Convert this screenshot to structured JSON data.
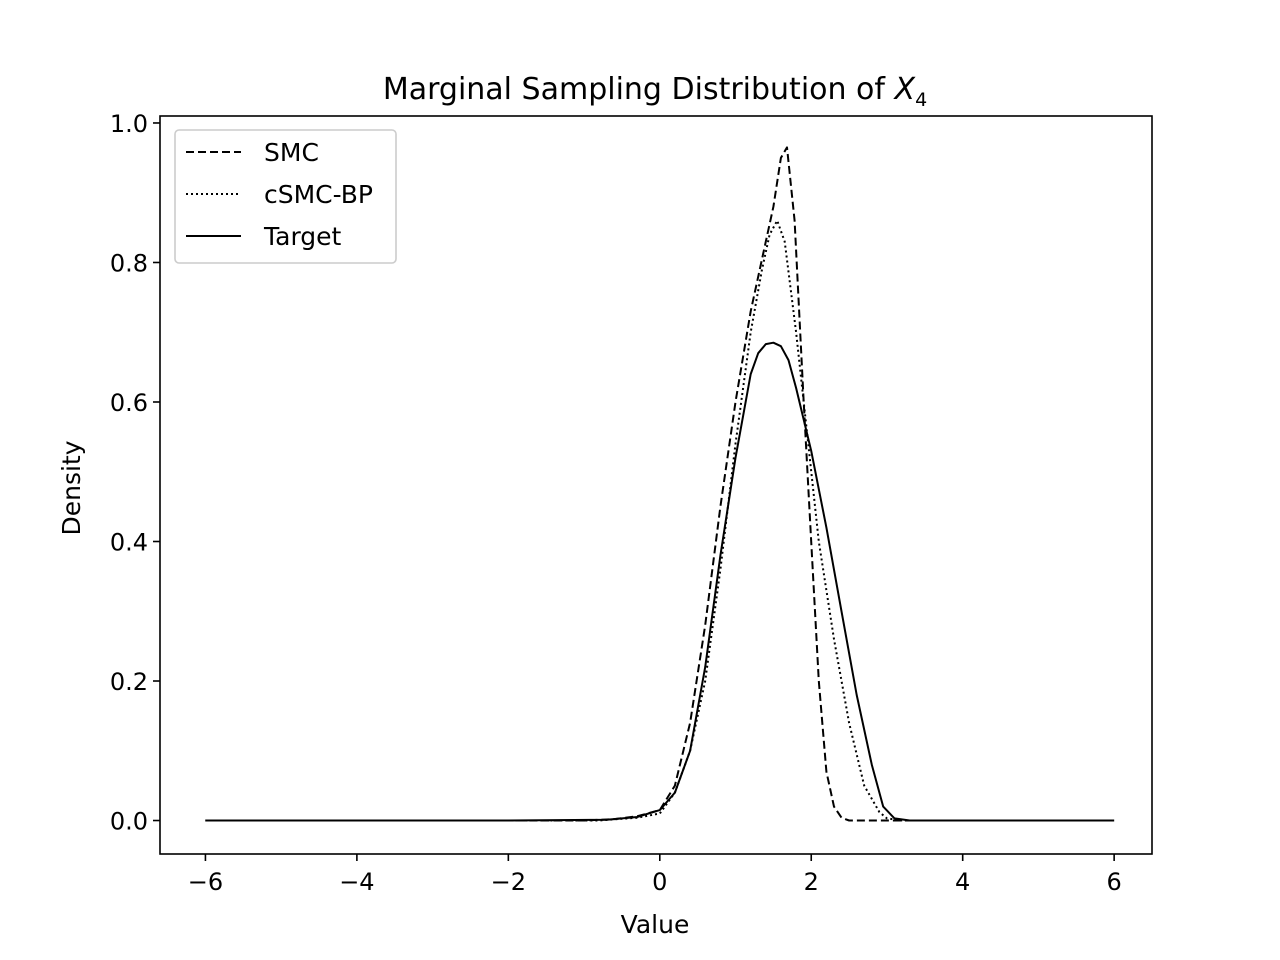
{
  "chart_data": {
    "type": "line",
    "title": "Marginal Sampling Distribution of ",
    "title_math_symbol": "X",
    "title_math_subscript": "4",
    "xlabel": "Value",
    "ylabel": "Density",
    "xlim": [
      -6.6,
      6.5
    ],
    "ylim": [
      -0.048,
      1.01
    ],
    "x_ticks": [
      -6,
      -4,
      -2,
      0,
      2,
      4,
      6
    ],
    "x_tick_labels": [
      "−6",
      "−4",
      "−2",
      "0",
      "2",
      "4",
      "6"
    ],
    "y_ticks": [
      0.0,
      0.2,
      0.4,
      0.6,
      0.8,
      1.0
    ],
    "y_tick_labels": [
      "0.0",
      "0.2",
      "0.4",
      "0.6",
      "0.8",
      "1.0"
    ],
    "grid": false,
    "legend_position": "upper-left",
    "series": [
      {
        "name": "SMC",
        "style": "dashed",
        "color": "#000000",
        "points": [
          [
            -6.0,
            0.0
          ],
          [
            -2.0,
            0.0
          ],
          [
            -1.0,
            0.0
          ],
          [
            -0.6,
            0.002
          ],
          [
            -0.3,
            0.006
          ],
          [
            0.0,
            0.015
          ],
          [
            0.2,
            0.05
          ],
          [
            0.4,
            0.14
          ],
          [
            0.6,
            0.28
          ],
          [
            0.8,
            0.45
          ],
          [
            1.0,
            0.6
          ],
          [
            1.2,
            0.73
          ],
          [
            1.4,
            0.83
          ],
          [
            1.5,
            0.88
          ],
          [
            1.6,
            0.95
          ],
          [
            1.68,
            0.965
          ],
          [
            1.78,
            0.86
          ],
          [
            1.9,
            0.6
          ],
          [
            2.0,
            0.4
          ],
          [
            2.1,
            0.2
          ],
          [
            2.2,
            0.07
          ],
          [
            2.3,
            0.02
          ],
          [
            2.4,
            0.004
          ],
          [
            2.5,
            0.0
          ],
          [
            3.0,
            0.0
          ],
          [
            6.0,
            0.0
          ]
        ]
      },
      {
        "name": "cSMC-BP",
        "style": "dotted",
        "color": "#000000",
        "points": [
          [
            -6.0,
            0.0
          ],
          [
            -2.0,
            0.0
          ],
          [
            -0.8,
            0.0
          ],
          [
            -0.3,
            0.004
          ],
          [
            0.0,
            0.01
          ],
          [
            0.2,
            0.04
          ],
          [
            0.4,
            0.1
          ],
          [
            0.6,
            0.2
          ],
          [
            0.8,
            0.36
          ],
          [
            1.0,
            0.54
          ],
          [
            1.2,
            0.7
          ],
          [
            1.35,
            0.79
          ],
          [
            1.45,
            0.84
          ],
          [
            1.55,
            0.86
          ],
          [
            1.65,
            0.83
          ],
          [
            1.8,
            0.7
          ],
          [
            1.95,
            0.55
          ],
          [
            2.1,
            0.4
          ],
          [
            2.3,
            0.26
          ],
          [
            2.5,
            0.14
          ],
          [
            2.7,
            0.05
          ],
          [
            2.9,
            0.012
          ],
          [
            3.0,
            0.003
          ],
          [
            3.2,
            0.0
          ],
          [
            6.0,
            0.0
          ]
        ]
      },
      {
        "name": "Target",
        "style": "solid",
        "color": "#000000",
        "points": [
          [
            -6.0,
            0.0
          ],
          [
            -2.0,
            0.0
          ],
          [
            -0.7,
            0.001
          ],
          [
            -0.3,
            0.005
          ],
          [
            0.0,
            0.015
          ],
          [
            0.2,
            0.04
          ],
          [
            0.4,
            0.1
          ],
          [
            0.6,
            0.22
          ],
          [
            0.8,
            0.38
          ],
          [
            1.0,
            0.52
          ],
          [
            1.2,
            0.64
          ],
          [
            1.3,
            0.67
          ],
          [
            1.4,
            0.683
          ],
          [
            1.5,
            0.685
          ],
          [
            1.6,
            0.68
          ],
          [
            1.7,
            0.66
          ],
          [
            1.8,
            0.62
          ],
          [
            2.0,
            0.53
          ],
          [
            2.2,
            0.42
          ],
          [
            2.4,
            0.3
          ],
          [
            2.6,
            0.18
          ],
          [
            2.8,
            0.08
          ],
          [
            2.95,
            0.02
          ],
          [
            3.1,
            0.003
          ],
          [
            3.3,
            0.0
          ],
          [
            6.0,
            0.0
          ]
        ]
      }
    ]
  }
}
